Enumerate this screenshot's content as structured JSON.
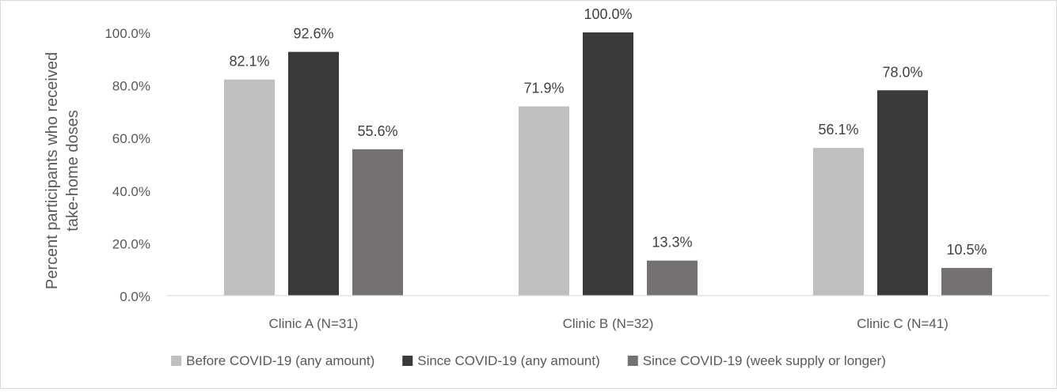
{
  "chart_data": {
    "type": "bar",
    "title": "",
    "xlabel": "",
    "ylabel": "Percent participants who received take-home doses",
    "ylabel_lines": [
      "Percent participants who received",
      "take-home doses"
    ],
    "ylim": [
      0,
      100
    ],
    "yticks": [
      0,
      20,
      40,
      60,
      80,
      100
    ],
    "ytick_labels": [
      "0.0%",
      "20.0%",
      "40.0%",
      "60.0%",
      "80.0%",
      "100.0%"
    ],
    "categories": [
      "Clinic A (N=31)",
      "Clinic B (N=32)",
      "Clinic C (N=41)"
    ],
    "series": [
      {
        "name": "Before COVID-19 (any amount)",
        "color": "#bfbfbf",
        "values": [
          82.1,
          71.9,
          56.1
        ],
        "labels": [
          "82.1%",
          "71.9%",
          "56.1%"
        ]
      },
      {
        "name": "Since COVID-19 (any amount)",
        "color": "#3a3a3a",
        "values": [
          92.6,
          100.0,
          78.0
        ],
        "labels": [
          "92.6%",
          "100.0%",
          "78.0%"
        ]
      },
      {
        "name": "Since COVID-19 (week supply or longer)",
        "color": "#767171",
        "values": [
          55.6,
          13.3,
          10.5
        ],
        "labels": [
          "55.6%",
          "13.3%",
          "10.5%"
        ]
      }
    ],
    "grid": false,
    "legend_position": "bottom"
  }
}
